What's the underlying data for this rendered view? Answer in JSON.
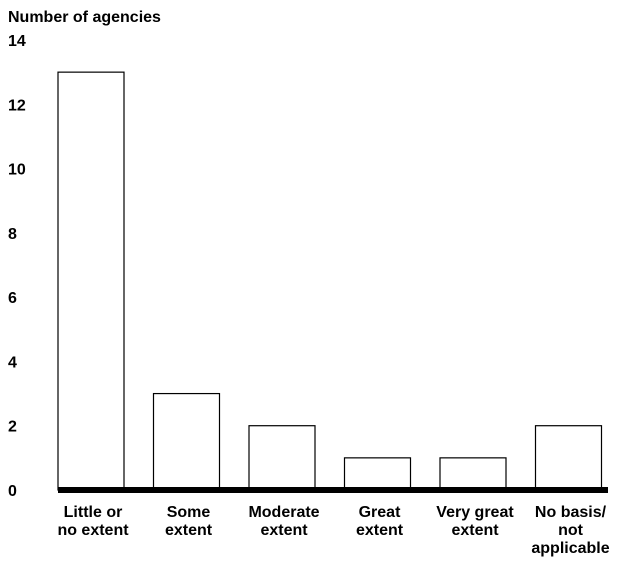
{
  "chart_data": {
    "type": "bar",
    "ylabel": "Number of agencies",
    "xlabel": "",
    "title": "",
    "ylim": [
      0,
      14
    ],
    "yticks": [
      0,
      2,
      4,
      6,
      8,
      10,
      12,
      14
    ],
    "ytick_labels": [
      "0",
      "2",
      "4",
      "6",
      "8",
      "10",
      "12",
      "14"
    ],
    "categories": [
      [
        "Little or",
        "no extent"
      ],
      [
        "Some",
        "extent"
      ],
      [
        "Moderate",
        "extent"
      ],
      [
        "Great",
        "extent"
      ],
      [
        "Very great",
        "extent"
      ],
      [
        "No basis/",
        "not",
        "applicable"
      ]
    ],
    "values": [
      13,
      3,
      2,
      1,
      1,
      2
    ],
    "grid": false,
    "legend": "none",
    "bar_fill": "#ffffff",
    "bar_stroke": "#000000",
    "axis_color": "#000000"
  }
}
